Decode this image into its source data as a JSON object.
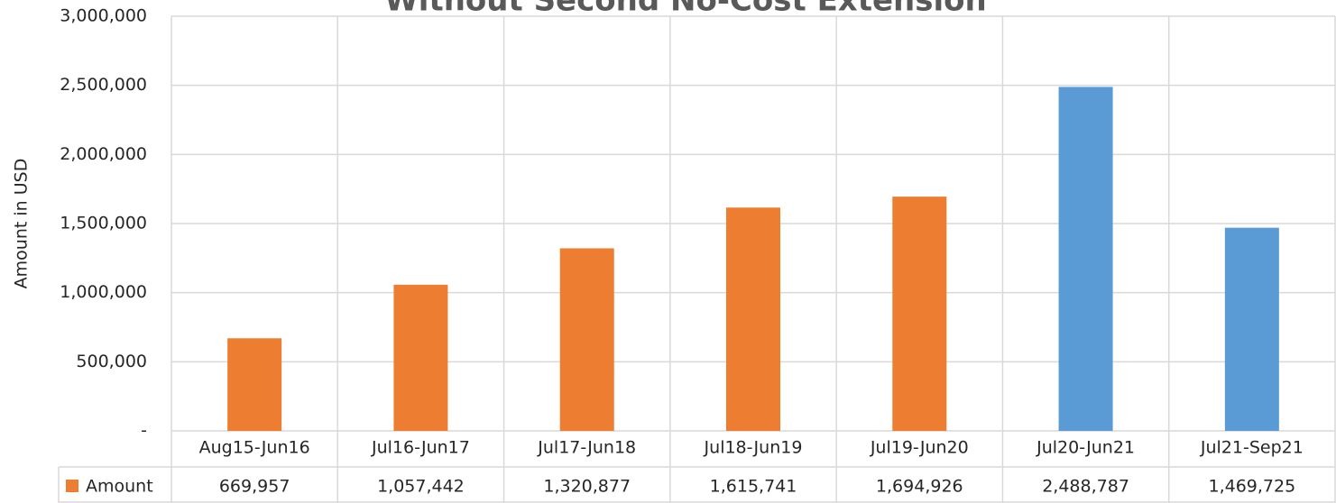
{
  "chart_data": {
    "type": "bar",
    "title": "Without Second No-Cost Extension",
    "y_label": "Amount in USD",
    "categories": [
      "Aug15-Jun16",
      "Jul16-Jun17",
      "Jul17-Jun18",
      "Jul18-Jun19",
      "Jul19-Jun20",
      "Jul20-Jun21",
      "Jul21-Sep21"
    ],
    "series": [
      {
        "name": "Amount",
        "color": "#ED7D31",
        "colors": [
          "#ED7D31",
          "#ED7D31",
          "#ED7D31",
          "#ED7D31",
          "#ED7D31",
          "#5B9BD5",
          "#5B9BD5"
        ],
        "values": [
          669957,
          1057442,
          1320877,
          1615741,
          1694926,
          2488787,
          1469725
        ],
        "value_labels": [
          "669,957",
          "1,057,442",
          "1,320,877",
          "1,615,741",
          "1,694,926",
          "2,488,787",
          "1,469,725"
        ]
      }
    ],
    "ylim": [
      0,
      3000000
    ],
    "yticks": [
      {
        "value": 0,
        "label": "-"
      },
      {
        "value": 500000,
        "label": "500,000"
      },
      {
        "value": 1000000,
        "label": "1,000,000"
      },
      {
        "value": 1500000,
        "label": "1,500,000"
      },
      {
        "value": 2000000,
        "label": "2,000,000"
      },
      {
        "value": 2500000,
        "label": "2,500,000"
      },
      {
        "value": 3000000,
        "label": "3,000,000"
      }
    ],
    "grid": true
  }
}
